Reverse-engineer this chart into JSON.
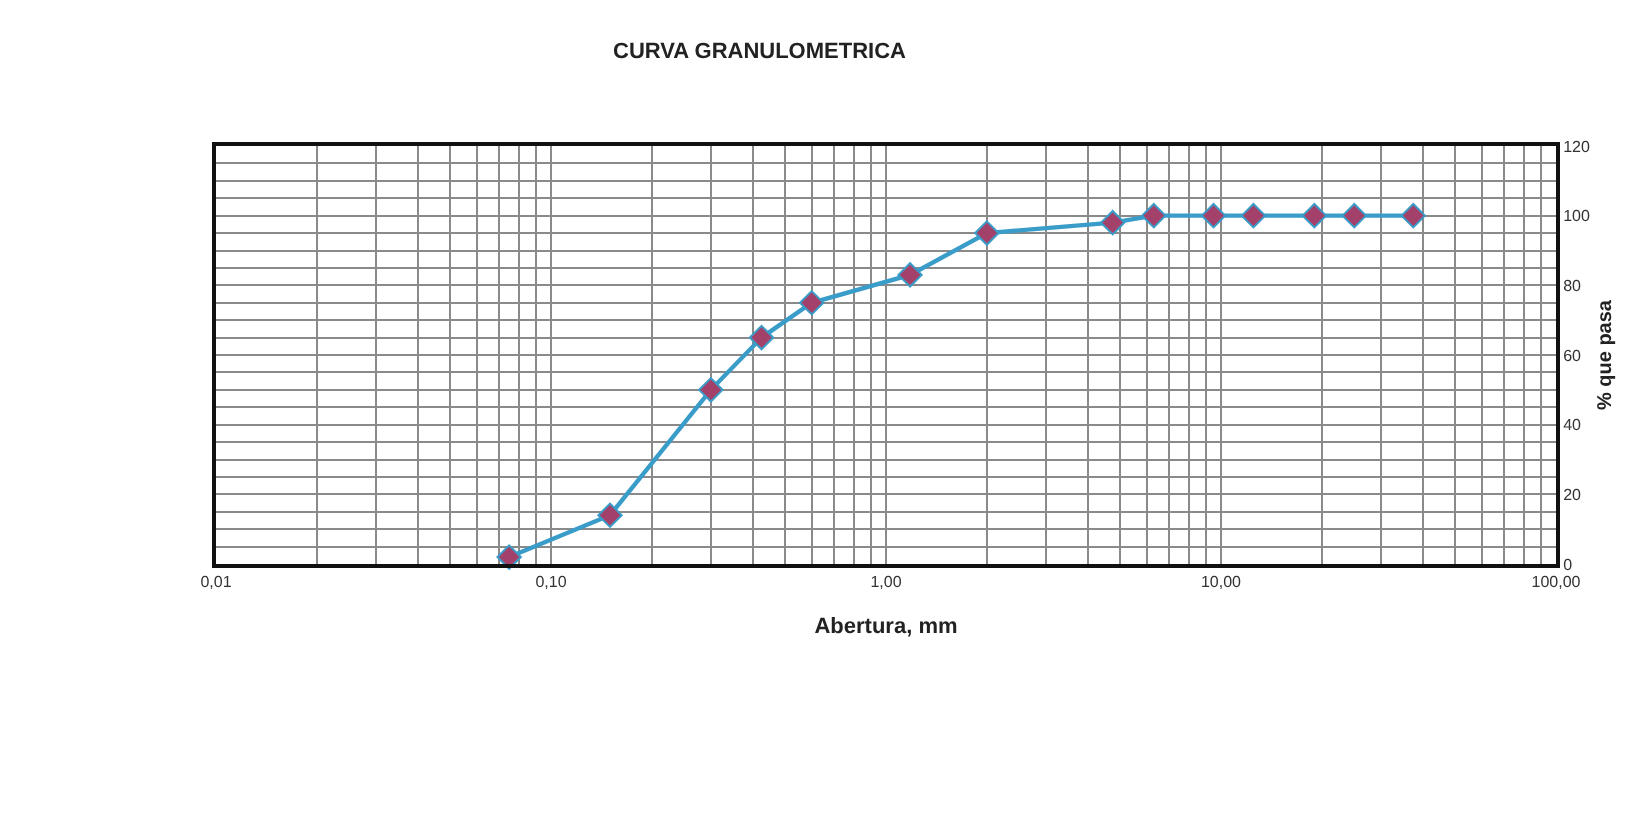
{
  "chart_data": {
    "type": "line",
    "title": "CURVA GRANULOMETRICA",
    "xlabel": "Abertura, mm",
    "ylabel": "% que pasa",
    "x": [
      0.075,
      0.15,
      0.3,
      0.425,
      0.6,
      1.18,
      2.0,
      4.75,
      6.3,
      9.5,
      12.5,
      19.0,
      25.0,
      37.5
    ],
    "series": [
      {
        "color": "#3a9cc8",
        "colors": [
          "#a3416b",
          "#a3416b",
          "#a3416b",
          "#a3416b",
          "#a3416b",
          "#a3416b",
          "#a3416b",
          "#a3416b",
          "#a3416b",
          "#a3416b",
          "#a3416b",
          "#a3416b",
          "#a3416b",
          "#a3416b"
        ],
        "values": [
          2,
          14,
          50,
          65,
          75,
          83,
          95,
          98,
          100,
          100,
          100,
          100,
          100,
          100
        ]
      }
    ],
    "log": "x",
    "xlim": [
      0.01,
      100
    ],
    "xticks": [
      {
        "value": 0.01,
        "label": "0,01"
      },
      {
        "value": 0.02,
        "label": null
      },
      {
        "value": 0.03,
        "label": null
      },
      {
        "value": 0.04,
        "label": null
      },
      {
        "value": 0.05,
        "label": null
      },
      {
        "value": 0.06,
        "label": null
      },
      {
        "value": 0.07,
        "label": null
      },
      {
        "value": 0.08,
        "label": null
      },
      {
        "value": 0.09,
        "label": null
      },
      {
        "value": 0.1,
        "label": "0,10"
      },
      {
        "value": 0.2,
        "label": null
      },
      {
        "value": 0.3,
        "label": null
      },
      {
        "value": 0.4,
        "label": null
      },
      {
        "value": 0.5,
        "label": null
      },
      {
        "value": 0.6,
        "label": null
      },
      {
        "value": 0.7,
        "label": null
      },
      {
        "value": 0.8,
        "label": null
      },
      {
        "value": 0.9,
        "label": null
      },
      {
        "value": 1,
        "label": "1,00"
      },
      {
        "value": 2,
        "label": null
      },
      {
        "value": 3,
        "label": null
      },
      {
        "value": 4,
        "label": null
      },
      {
        "value": 5,
        "label": null
      },
      {
        "value": 6,
        "label": null
      },
      {
        "value": 7,
        "label": null
      },
      {
        "value": 8,
        "label": null
      },
      {
        "value": 9,
        "label": null
      },
      {
        "value": 10,
        "label": "10,00"
      },
      {
        "value": 20,
        "label": null
      },
      {
        "value": 30,
        "label": null
      },
      {
        "value": 40,
        "label": null
      },
      {
        "value": 50,
        "label": null
      },
      {
        "value": 60,
        "label": null
      },
      {
        "value": 70,
        "label": null
      },
      {
        "value": 80,
        "label": null
      },
      {
        "value": 90,
        "label": null
      },
      {
        "value": 100,
        "label": "100,00"
      }
    ],
    "ylim": [
      0,
      120
    ],
    "yticks": [
      0,
      {
        "value": 5,
        "label": null
      },
      {
        "value": 10,
        "label": null
      },
      {
        "value": 15,
        "label": null
      },
      20,
      {
        "value": 25,
        "label": null
      },
      {
        "value": 30,
        "label": null
      },
      {
        "value": 35,
        "label": null
      },
      40,
      {
        "value": 45,
        "label": null
      },
      {
        "value": 50,
        "label": null
      },
      {
        "value": 55,
        "label": null
      },
      60,
      {
        "value": 65,
        "label": null
      },
      {
        "value": 70,
        "label": null
      },
      {
        "value": 75,
        "label": null
      },
      80,
      {
        "value": 85,
        "label": null
      },
      {
        "value": 90,
        "label": null
      },
      {
        "value": 95,
        "label": null
      },
      100,
      {
        "value": 105,
        "label": null
      },
      {
        "value": 110,
        "label": null
      },
      {
        "value": 115,
        "label": null
      },
      120
    ],
    "grid": true,
    "marker": "diamond",
    "line_style": "solid"
  }
}
